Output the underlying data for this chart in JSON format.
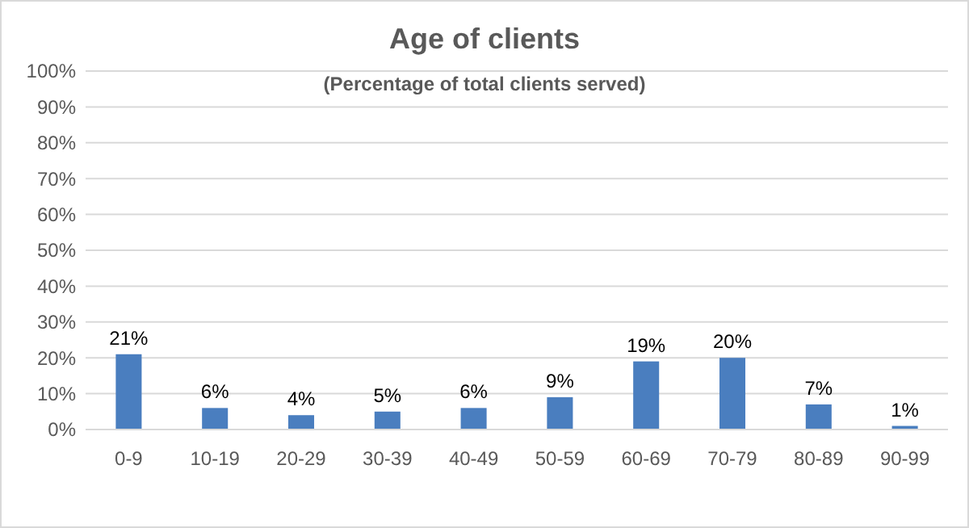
{
  "chart_data": {
    "type": "bar",
    "title": "Age of clients",
    "subtitle": "(Percentage of total clients served)",
    "categories": [
      "0-9",
      "10-19",
      "20-29",
      "30-39",
      "40-49",
      "50-59",
      "60-69",
      "70-79",
      "80-89",
      "90-99"
    ],
    "values": [
      21,
      6,
      4,
      5,
      6,
      9,
      19,
      20,
      7,
      1
    ],
    "value_labels": [
      "21%",
      "6%",
      "4%",
      "5%",
      "6%",
      "9%",
      "19%",
      "20%",
      "7%",
      "1%"
    ],
    "color": "#4a7ebf",
    "ylim": [
      0,
      100
    ],
    "yticks": [
      {
        "value": 0,
        "label": "0%"
      },
      {
        "value": 10,
        "label": "10%"
      },
      {
        "value": 20,
        "label": "20%"
      },
      {
        "value": 30,
        "label": "30%"
      },
      {
        "value": 40,
        "label": "40%"
      },
      {
        "value": 50,
        "label": "50%"
      },
      {
        "value": 60,
        "label": "60%"
      },
      {
        "value": 70,
        "label": "70%"
      },
      {
        "value": 80,
        "label": "80%"
      },
      {
        "value": 90,
        "label": "90%"
      },
      {
        "value": 100,
        "label": "100%"
      }
    ],
    "grid": "y"
  }
}
